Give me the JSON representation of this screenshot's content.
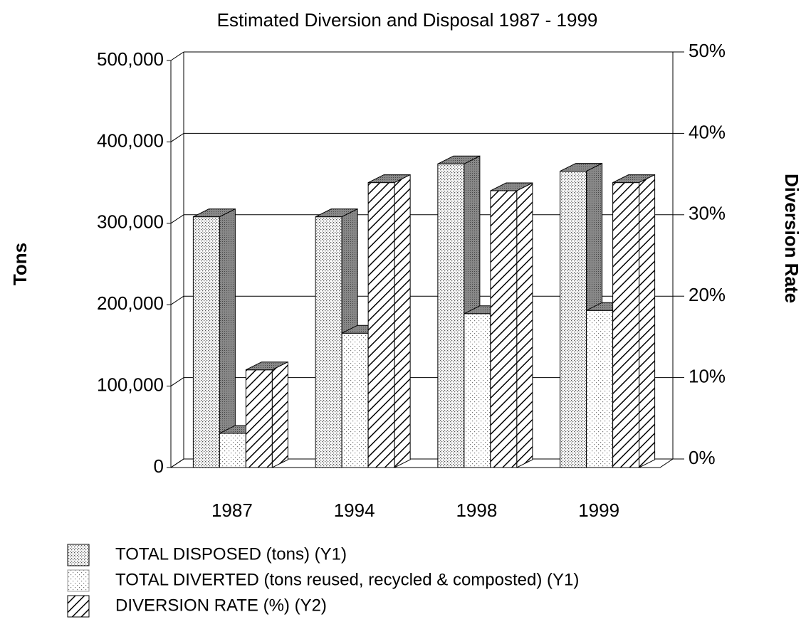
{
  "chart_data": {
    "type": "bar3d",
    "title": "Estimated Diversion and Disposal 1987 - 1999",
    "ylabel": "Tons",
    "y2label": "Diversion Rate",
    "categories": [
      "1987",
      "1994",
      "1998",
      "1999"
    ],
    "series": [
      {
        "name": "TOTAL DISPOSED (tons) (Y1)",
        "color": "#888888",
        "values": [
          308000,
          308000,
          373000,
          364000
        ]
      },
      {
        "name": "TOTAL DIVERTED (tons reused, recycled & composted) (Y1)",
        "color": "#b0b0b0",
        "values": [
          42000,
          165000,
          189000,
          193000
        ]
      },
      {
        "name": "DIVERSION RATE (%) (Y2)",
        "color": "#000000",
        "axis": "y2",
        "values": [
          12,
          35,
          34,
          35
        ]
      }
    ],
    "ylim": [
      0,
      500000
    ],
    "yticks": [
      0,
      {
        "value": 100000,
        "label": "100,000"
      },
      {
        "value": 200000,
        "label": "200,000"
      },
      {
        "value": 300000,
        "label": "300,000"
      },
      {
        "value": 400000,
        "label": "400,000"
      },
      {
        "value": 500000,
        "label": "500,000"
      }
    ],
    "y2lim": [
      0,
      50
    ],
    "y2ticks": [
      {
        "value": 0,
        "label": "0%"
      },
      {
        "value": 10,
        "label": "10%"
      },
      {
        "value": 20,
        "label": "20%"
      },
      {
        "value": 30,
        "label": "30%"
      },
      {
        "value": 40,
        "label": "40%"
      },
      {
        "value": 50,
        "label": "50%"
      }
    ],
    "grid": true
  }
}
